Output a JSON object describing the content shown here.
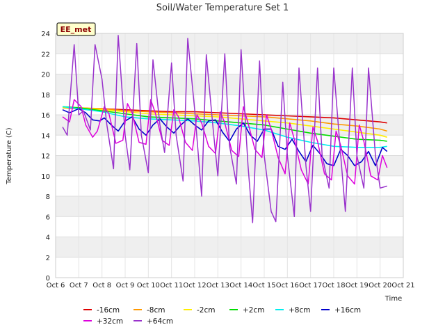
{
  "chart_data": {
    "type": "line",
    "title": "Soil/Water Temperature Set 1",
    "xlabel": "Time",
    "ylabel": "Temperature (C)",
    "badge": "EE_met",
    "xlim": [
      6,
      21
    ],
    "ylim": [
      0,
      24
    ],
    "x_ticks": [
      6,
      7,
      8,
      9,
      10,
      11,
      12,
      13,
      14,
      15,
      16,
      17,
      18,
      19,
      20,
      21
    ],
    "x_tick_labels": [
      "Oct 6",
      "Oct 7",
      "Oct 8",
      "Oct 9",
      "Oct 10",
      "Oct 11",
      "Oct 12",
      "Oct 13",
      "Oct 14",
      "Oct 15",
      "Oct 16",
      "Oct 17",
      "Oct 18",
      "Oct 19",
      "Oct 20",
      "Oct 21"
    ],
    "y_ticks": [
      0,
      2,
      4,
      6,
      8,
      10,
      12,
      14,
      16,
      18,
      20,
      22,
      24
    ],
    "grid": true,
    "x_unit": "day of October",
    "series": [
      {
        "name": "-16cm",
        "color": "#dd0000",
        "x": [
          6.3,
          7,
          8,
          9,
          10,
          11,
          12,
          13,
          14,
          15,
          16,
          17,
          18,
          19,
          20,
          20.3
        ],
        "y": [
          16.7,
          16.6,
          16.6,
          16.5,
          16.4,
          16.3,
          16.3,
          16.2,
          16.1,
          16.0,
          15.9,
          15.8,
          15.7,
          15.5,
          15.3,
          15.2
        ]
      },
      {
        "name": "-8cm",
        "color": "#ff9900",
        "x": [
          6.3,
          7,
          8,
          9,
          10,
          11,
          12,
          13,
          14,
          15,
          16,
          17,
          18,
          19,
          20,
          20.3
        ],
        "y": [
          16.7,
          16.7,
          16.6,
          16.4,
          16.3,
          16.2,
          16.1,
          16.0,
          15.9,
          15.8,
          15.6,
          15.4,
          15.1,
          14.9,
          14.6,
          14.4
        ]
      },
      {
        "name": "-2cm",
        "color": "#ffee00",
        "x": [
          6.3,
          7,
          8,
          9,
          10,
          11,
          12,
          13,
          14,
          15,
          16,
          17,
          18,
          19,
          20,
          20.3
        ],
        "y": [
          16.7,
          16.7,
          16.5,
          16.3,
          16.1,
          16.0,
          15.9,
          15.8,
          15.6,
          15.4,
          15.2,
          14.9,
          14.6,
          14.3,
          14.0,
          13.8
        ]
      },
      {
        "name": "+2cm",
        "color": "#00dd00",
        "x": [
          6.3,
          7,
          8,
          9,
          10,
          11,
          12,
          13,
          14,
          15,
          16,
          17,
          18,
          19,
          20,
          20.3
        ],
        "y": [
          16.8,
          16.7,
          16.4,
          16.1,
          15.8,
          15.7,
          15.6,
          15.4,
          15.2,
          15.0,
          14.6,
          14.2,
          13.9,
          13.6,
          13.5,
          13.4
        ]
      },
      {
        "name": "+8cm",
        "color": "#00eeee",
        "x": [
          6.3,
          7,
          8,
          9,
          10,
          11,
          12,
          13,
          14,
          15,
          16,
          17,
          18,
          19,
          20,
          20.3
        ],
        "y": [
          16.8,
          16.6,
          16.3,
          15.8,
          15.6,
          15.5,
          15.4,
          15.2,
          14.9,
          14.5,
          13.8,
          13.3,
          12.9,
          12.8,
          12.8,
          12.9
        ]
      },
      {
        "name": "+16cm",
        "color": "#0000cc",
        "x": [
          6.3,
          6.6,
          7.0,
          7.3,
          7.6,
          7.9,
          8.1,
          8.4,
          8.7,
          9.0,
          9.3,
          9.6,
          9.9,
          10.2,
          10.5,
          10.8,
          11.1,
          11.4,
          11.7,
          12.0,
          12.3,
          12.6,
          12.9,
          13.2,
          13.5,
          13.8,
          14.1,
          14.4,
          14.7,
          15.0,
          15.3,
          15.6,
          15.9,
          16.2,
          16.5,
          16.8,
          17.1,
          17.4,
          17.7,
          18.0,
          18.3,
          18.6,
          18.9,
          19.2,
          19.5,
          19.8,
          20.1,
          20.3
        ],
        "y": [
          16.5,
          16.2,
          16.6,
          16.2,
          15.5,
          15.4,
          15.7,
          15.0,
          14.4,
          15.4,
          15.8,
          14.6,
          14.0,
          15.0,
          15.6,
          14.8,
          14.2,
          15.0,
          15.6,
          15.0,
          14.5,
          15.4,
          15.5,
          14.3,
          13.4,
          14.6,
          15.2,
          14.0,
          13.4,
          14.6,
          14.6,
          12.9,
          12.6,
          13.6,
          12.4,
          11.4,
          13.0,
          12.2,
          11.2,
          11.0,
          12.6,
          12.0,
          11.0,
          11.4,
          12.4,
          11.0,
          12.8,
          12.4
        ]
      },
      {
        "name": "+32cm",
        "color": "#dd00dd",
        "x": [
          6.3,
          6.6,
          6.8,
          7.1,
          7.3,
          7.6,
          7.8,
          8.1,
          8.3,
          8.6,
          8.9,
          9.1,
          9.3,
          9.6,
          9.9,
          10.1,
          10.3,
          10.6,
          10.9,
          11.1,
          11.3,
          11.6,
          11.9,
          12.1,
          12.3,
          12.6,
          12.9,
          13.1,
          13.3,
          13.6,
          13.9,
          14.1,
          14.3,
          14.6,
          14.9,
          15.1,
          15.3,
          15.6,
          15.9,
          16.1,
          16.3,
          16.6,
          16.9,
          17.1,
          17.3,
          17.6,
          17.9,
          18.1,
          18.3,
          18.6,
          18.9,
          19.1,
          19.3,
          19.6,
          19.9,
          20.1,
          20.3
        ],
        "y": [
          15.8,
          15.3,
          17.5,
          16.8,
          15.0,
          13.8,
          14.4,
          16.8,
          16.1,
          13.2,
          13.5,
          17.1,
          16.2,
          13.3,
          13.1,
          17.5,
          16.2,
          13.5,
          13.0,
          16.5,
          15.8,
          13.3,
          12.5,
          16.0,
          15.2,
          12.9,
          12.2,
          16.3,
          15.2,
          12.5,
          11.9,
          16.8,
          15.2,
          12.6,
          11.8,
          16.0,
          14.6,
          11.8,
          10.2,
          15.2,
          13.6,
          10.6,
          9.2,
          14.8,
          13.4,
          10.2,
          9.6,
          14.4,
          13.0,
          10.0,
          9.2,
          15.0,
          13.4,
          10.0,
          9.6,
          12.0,
          10.8
        ]
      },
      {
        "name": "+64cm",
        "color": "#9933cc",
        "x": [
          6.3,
          6.5,
          6.8,
          7.0,
          7.2,
          7.5,
          7.7,
          8.0,
          8.2,
          8.5,
          8.7,
          9.0,
          9.2,
          9.5,
          9.7,
          10.0,
          10.2,
          10.5,
          10.7,
          11.0,
          11.2,
          11.5,
          11.7,
          12.0,
          12.3,
          12.5,
          12.8,
          13.0,
          13.3,
          13.5,
          13.8,
          14.0,
          14.3,
          14.5,
          14.8,
          15.0,
          15.3,
          15.5,
          15.8,
          16.0,
          16.3,
          16.5,
          16.8,
          17.0,
          17.3,
          17.5,
          17.8,
          18.0,
          18.3,
          18.5,
          18.8,
          19.0,
          19.3,
          19.5,
          19.8,
          20.0,
          20.3
        ],
        "y": [
          14.8,
          14.0,
          22.9,
          16.0,
          16.4,
          14.5,
          22.9,
          19.5,
          15.2,
          10.7,
          23.8,
          14.0,
          10.6,
          23.0,
          14.0,
          10.3,
          21.4,
          15.0,
          12.3,
          21.1,
          14.0,
          9.5,
          23.5,
          16.5,
          8.0,
          21.9,
          14.5,
          10.0,
          22.0,
          13.0,
          9.2,
          22.4,
          11.0,
          5.4,
          21.3,
          12.0,
          6.5,
          5.5,
          19.2,
          12.0,
          6.0,
          20.6,
          11.0,
          6.5,
          20.6,
          12.0,
          8.8,
          20.6,
          12.0,
          6.5,
          20.6,
          12.0,
          8.8,
          20.6,
          12.0,
          8.8,
          9.0
        ]
      }
    ],
    "legend_placement": "bottom"
  }
}
